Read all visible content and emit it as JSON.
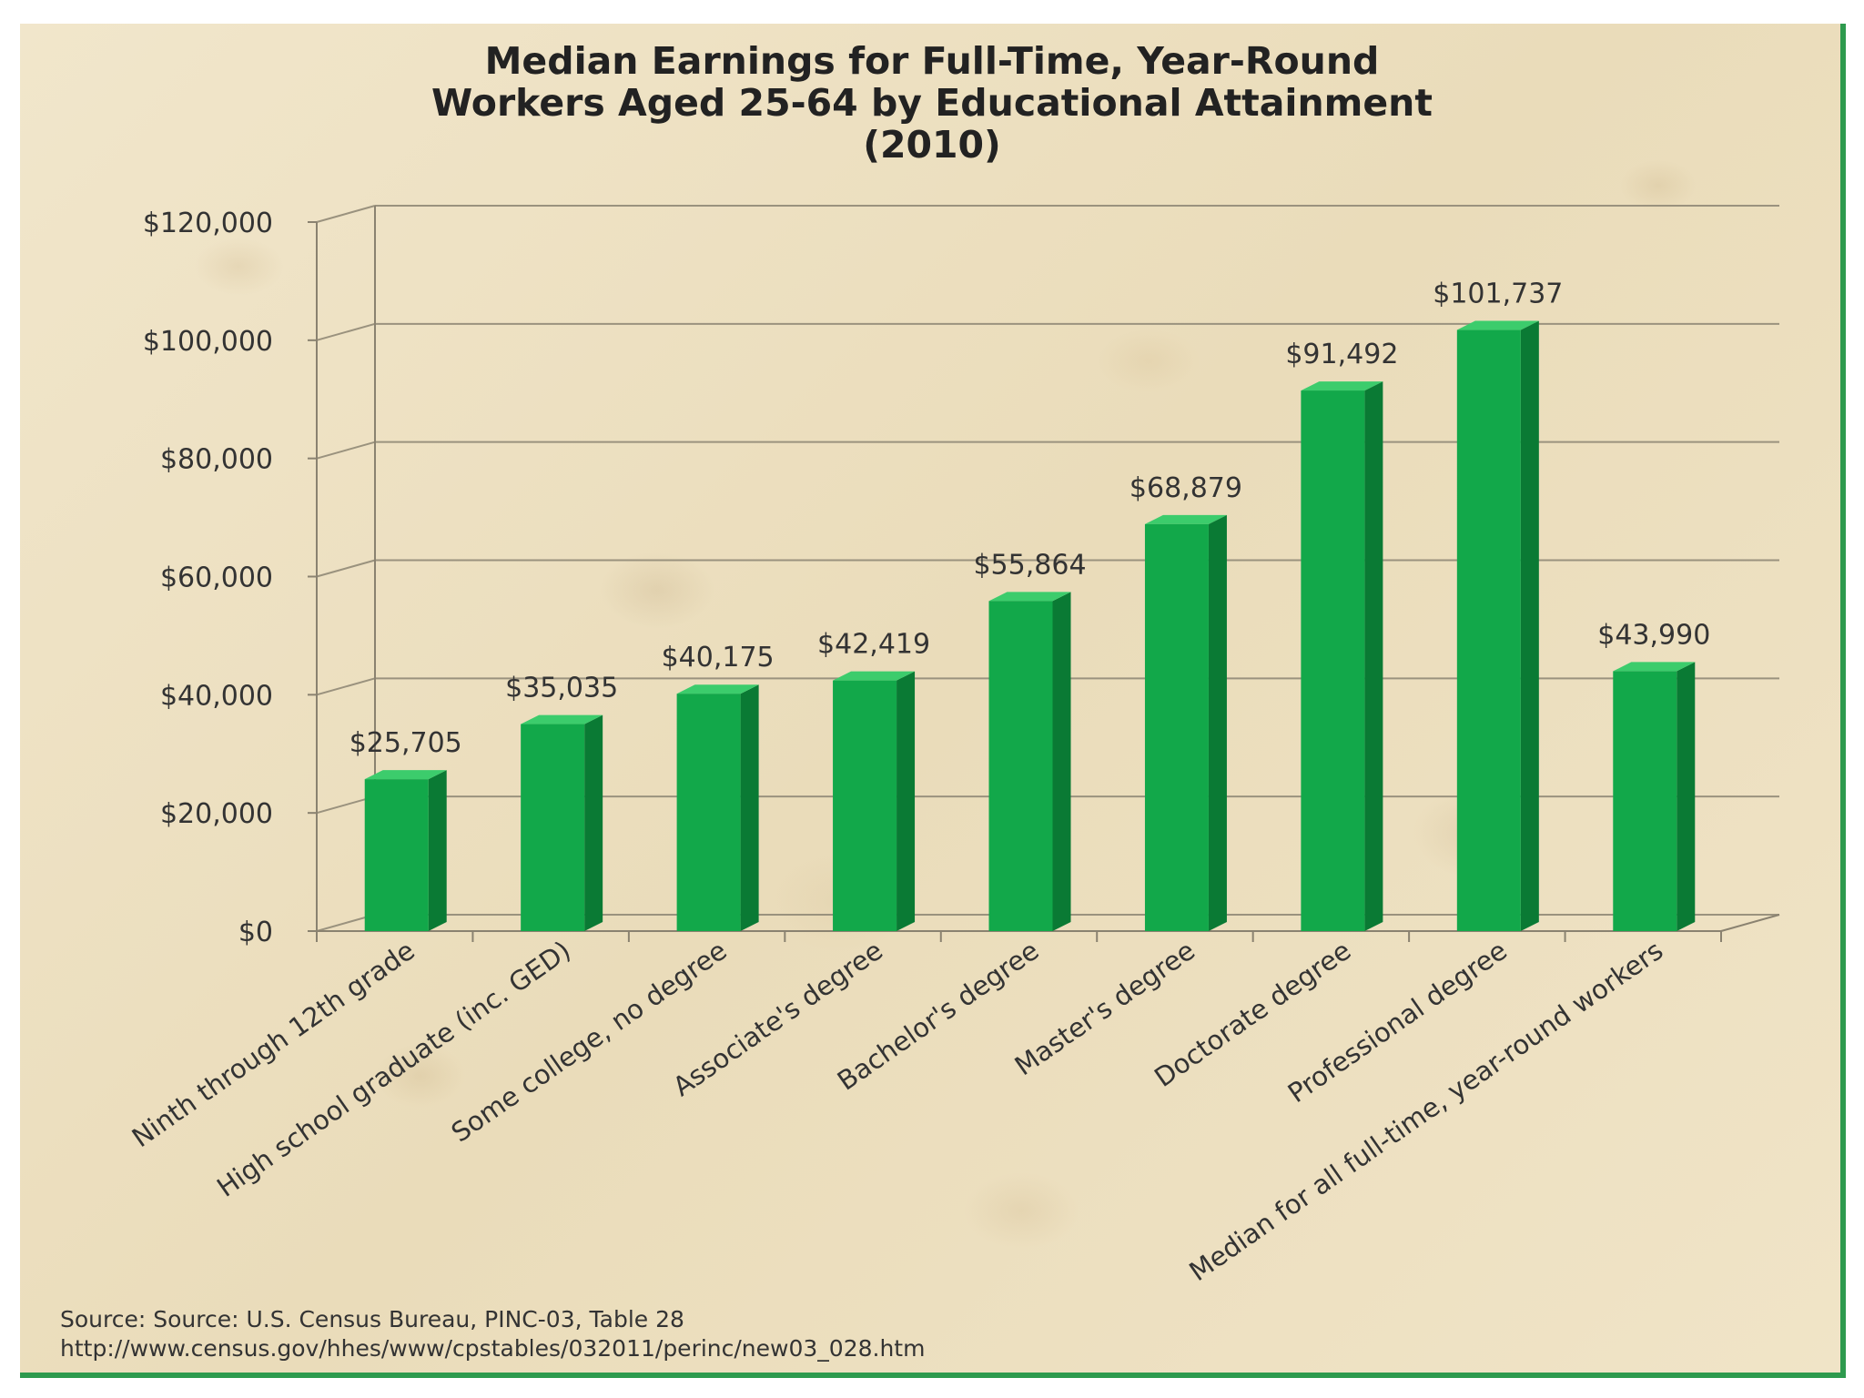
{
  "chart_data": {
    "type": "bar",
    "title_lines": [
      "Median Earnings for Full-Time, Year-Round",
      "Workers Aged 25-64 by Educational Attainment",
      "(2010)"
    ],
    "categories": [
      "Ninth through 12th grade",
      "High school graduate (inc. GED)",
      "Some college, no degree",
      "Associate's degree",
      "Bachelor's degree",
      "Master's degree",
      "Doctorate degree",
      "Professional degree",
      "Median for all full-time, year-round workers"
    ],
    "values": [
      25705,
      35035,
      40175,
      42419,
      55864,
      68879,
      91492,
      101737,
      43990
    ],
    "data_labels": [
      "$25,705",
      "$35,035",
      "$40,175",
      "$42,419",
      "$55,864",
      "$68,879",
      "$91,492",
      "$101,737",
      "$43,990"
    ],
    "y_ticks": [
      0,
      20000,
      40000,
      60000,
      80000,
      100000,
      120000
    ],
    "y_tick_labels": [
      "$0",
      "$20,000",
      "$40,000",
      "$60,000",
      "$80,000",
      "$100,000",
      "$120,000"
    ],
    "ylim": [
      0,
      120000
    ],
    "grid": true,
    "legend": "none",
    "bar_color": "#12a84a",
    "bar_side_color": "#0a7a34",
    "bar_top_color": "#3ccc6c"
  },
  "source": {
    "line1": "Source: Source: U.S. Census Bureau, PINC-03, Table  28",
    "line2": "http://www.census.gov/hhes/www/cpstables/032011/perinc/new03_028.htm"
  }
}
